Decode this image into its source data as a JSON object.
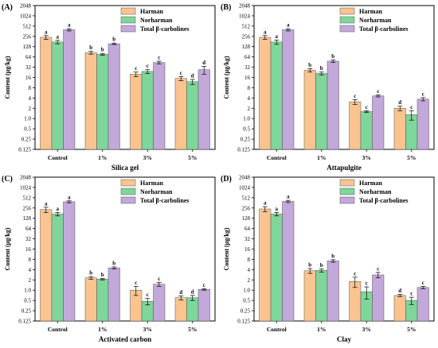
{
  "chart_data": [
    {
      "type": "bar",
      "panel_label": "(A)",
      "xlabel": "Silica gel",
      "ylabel": "Content (μg/kg)",
      "yscale": "log2",
      "ylim": [
        0.125,
        2048
      ],
      "yticks": [
        "0.125",
        "0.25",
        "0.5",
        "1.0",
        "2",
        "4",
        "8",
        "16",
        "32",
        "64",
        "128",
        "256",
        "512",
        "1024",
        "2048"
      ],
      "categories": [
        "Control",
        "1%",
        "3%",
        "5%"
      ],
      "legend_position": "top-right",
      "series": [
        {
          "name": "Harman",
          "color": "#FAC490",
          "values": [
            240,
            85,
            20,
            15
          ],
          "errors": [
            30,
            8,
            3,
            2
          ],
          "letters": [
            "a",
            "b",
            "c",
            "c"
          ]
        },
        {
          "name": "Norharman",
          "color": "#7FD69A",
          "values": [
            175,
            76,
            24,
            12
          ],
          "errors": [
            20,
            5,
            3,
            2
          ],
          "letters": [
            "a",
            "b",
            "c",
            "d"
          ]
        },
        {
          "name": "Total β-carbolines",
          "color": "#C3A8DA",
          "values": [
            400,
            155,
            44,
            27
          ],
          "errors": [
            30,
            8,
            4,
            7
          ],
          "letters": [
            "a",
            "b",
            "c",
            "d"
          ]
        }
      ]
    },
    {
      "type": "bar",
      "panel_label": "(B)",
      "xlabel": "Attapulgite",
      "ylabel": "Content (μg/kg)",
      "yscale": "log2",
      "ylim": [
        0.125,
        2048
      ],
      "yticks": [
        "0.125",
        "0.25",
        "0.5",
        "1.0",
        "2",
        "4",
        "8",
        "16",
        "32",
        "64",
        "128",
        "256",
        "512",
        "1024",
        "2048"
      ],
      "categories": [
        "Control",
        "1%",
        "3%",
        "5%"
      ],
      "legend_position": "top-right",
      "series": [
        {
          "name": "Harman",
          "color": "#FAC490",
          "values": [
            240,
            26,
            3.1,
            2.0
          ],
          "errors": [
            30,
            3,
            0.5,
            0.3
          ],
          "letters": [
            "a",
            "b",
            "c",
            "d"
          ]
        },
        {
          "name": "Norharman",
          "color": "#7FD69A",
          "values": [
            175,
            21,
            1.6,
            1.3
          ],
          "errors": [
            25,
            2,
            0.1,
            0.4
          ],
          "letters": [
            "a",
            "b",
            "c",
            "c"
          ]
        },
        {
          "name": "Total β-carbolines",
          "color": "#C3A8DA",
          "values": [
            400,
            48,
            4.6,
            3.7
          ],
          "errors": [
            30,
            4,
            0.3,
            0.4
          ],
          "letters": [
            "a",
            "b",
            "c",
            "c"
          ]
        }
      ]
    },
    {
      "type": "bar",
      "panel_label": "(C)",
      "xlabel": "Activated carbon",
      "ylabel": "Content (μg/kg)",
      "yscale": "log2",
      "ylim": [
        0.125,
        2048
      ],
      "yticks": [
        "0.125",
        "0.25",
        "0.5",
        "1.0",
        "2",
        "4",
        "8",
        "16",
        "32",
        "64",
        "128",
        "256",
        "512",
        "1024",
        "2048"
      ],
      "categories": [
        "Control",
        "1%",
        "3%",
        "5%"
      ],
      "legend_position": "top-right",
      "series": [
        {
          "name": "Harman",
          "color": "#FAC490",
          "values": [
            230,
            2.3,
            1.0,
            0.6
          ],
          "errors": [
            40,
            0.2,
            0.3,
            0.08
          ],
          "letters": [
            "a",
            "b",
            "c",
            "d"
          ]
        },
        {
          "name": "Norharman",
          "color": "#7FD69A",
          "values": [
            170,
            2.1,
            0.47,
            0.6
          ],
          "errors": [
            20,
            0.1,
            0.1,
            0.1
          ],
          "letters": [
            "a",
            "b",
            "c",
            "d"
          ]
        },
        {
          "name": "Total β-carbolines",
          "color": "#C3A8DA",
          "values": [
            390,
            4.5,
            1.5,
            1.05
          ],
          "errors": [
            25,
            0.3,
            0.2,
            0.05
          ],
          "letters": [
            "a",
            "b",
            "c",
            "c"
          ]
        }
      ]
    },
    {
      "type": "bar",
      "panel_label": "(D)",
      "xlabel": "Clay",
      "ylabel": "Content (μg/kg)",
      "yscale": "log2",
      "ylim": [
        0.125,
        2048
      ],
      "yticks": [
        "0.125",
        "0.25",
        "0.5",
        "1.0",
        "2",
        "4",
        "8",
        "16",
        "32",
        "64",
        "128",
        "256",
        "512",
        "1024",
        "2048"
      ],
      "categories": [
        "Control",
        "1%",
        "3%",
        "5%"
      ],
      "legend_position": "top-right",
      "series": [
        {
          "name": "Harman",
          "color": "#FAC490",
          "values": [
            240,
            3.7,
            1.8,
            0.7
          ],
          "errors": [
            40,
            0.6,
            0.6,
            0.05
          ],
          "letters": [
            "a",
            "b",
            "c",
            "d"
          ]
        },
        {
          "name": "Norharman",
          "color": "#7FD69A",
          "values": [
            170,
            3.8,
            0.9,
            0.5
          ],
          "errors": [
            20,
            0.4,
            0.35,
            0.12
          ],
          "letters": [
            "a",
            "b",
            "c",
            "c"
          ]
        },
        {
          "name": "Total β-carbolines",
          "color": "#C3A8DA",
          "values": [
            400,
            7.2,
            2.8,
            1.2
          ],
          "errors": [
            30,
            0.6,
            0.5,
            0.1
          ],
          "letters": [
            "a",
            "b",
            "c",
            "c"
          ]
        }
      ]
    }
  ]
}
